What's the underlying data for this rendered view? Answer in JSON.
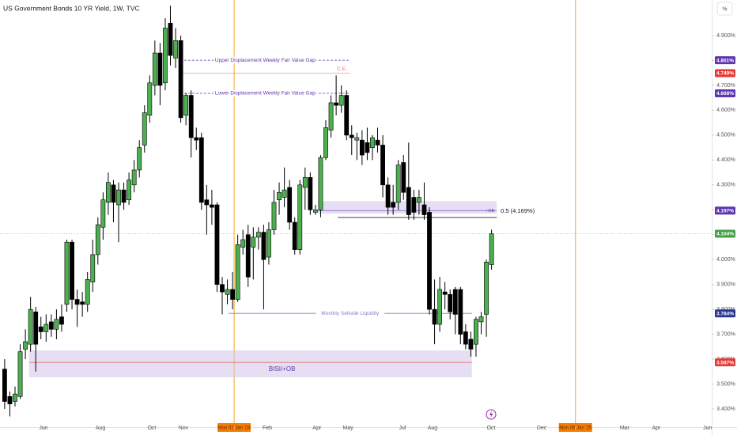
{
  "chart_data": {
    "type": "candlestick",
    "title": "US Government Bonds 10 YR Yield, 1W, TVC",
    "scale_button": "%",
    "up_color": "#4caf50",
    "down_color": "#000000",
    "open": [
      3.56,
      3.45,
      3.43,
      3.45,
      3.64,
      3.66,
      3.79,
      3.73,
      3.71,
      3.75,
      3.72,
      3.77,
      3.82,
      4.07,
      3.84,
      3.83,
      3.82,
      3.91,
      4.02,
      4.13,
      4.23,
      4.3,
      4.22,
      4.28,
      4.24,
      4.3,
      4.36,
      4.46,
      4.58,
      4.7,
      4.83,
      4.71,
      4.95,
      4.81,
      4.88,
      4.58,
      4.66,
      4.49,
      4.49,
      4.24,
      4.22,
      4.22,
      3.9,
      3.86,
      3.88,
      3.84,
      4.05,
      4.1,
      4.05,
      4.09,
      4.11,
      4.01,
      4.12,
      4.24,
      4.25,
      4.29,
      4.15,
      4.04,
      4.29,
      4.33,
      4.19,
      4.2,
      4.41,
      4.52,
      4.63,
      4.62,
      4.66,
      4.5,
      4.48,
      4.48,
      4.47,
      4.45,
      4.48,
      4.46,
      4.3,
      4.23,
      4.23,
      4.39,
      4.29,
      4.25,
      4.23,
      4.22,
      4.19,
      3.8,
      3.74,
      3.87,
      3.86,
      3.88,
      3.88,
      3.71,
      3.68,
      3.66,
      3.75,
      3.78,
      3.98
    ],
    "high": [
      3.6,
      3.47,
      3.49,
      3.66,
      3.72,
      3.85,
      3.81,
      3.77,
      3.78,
      3.78,
      3.8,
      3.82,
      4.08,
      4.08,
      3.88,
      3.87,
      3.95,
      4.08,
      4.17,
      4.27,
      4.35,
      4.32,
      4.31,
      4.31,
      4.35,
      4.4,
      4.48,
      4.62,
      4.74,
      4.88,
      4.87,
      4.97,
      5.02,
      4.93,
      4.9,
      4.67,
      4.68,
      4.53,
      4.51,
      4.3,
      4.28,
      4.23,
      3.93,
      3.92,
      3.95,
      4.1,
      4.12,
      4.14,
      4.13,
      4.13,
      4.14,
      4.15,
      4.28,
      4.31,
      4.37,
      4.32,
      4.17,
      4.32,
      4.37,
      4.35,
      4.22,
      4.42,
      4.56,
      4.66,
      4.74,
      4.7,
      4.68,
      4.54,
      4.51,
      4.52,
      4.53,
      4.5,
      4.53,
      4.5,
      4.33,
      4.3,
      4.4,
      4.42,
      4.47,
      4.28,
      4.28,
      4.31,
      4.21,
      3.92,
      3.93,
      3.91,
      3.88,
      3.89,
      3.89,
      3.74,
      3.71,
      3.77,
      3.79,
      4.0,
      4.12
    ],
    "low": [
      3.4,
      3.37,
      3.41,
      3.44,
      3.6,
      3.63,
      3.55,
      3.68,
      3.67,
      3.69,
      3.68,
      3.71,
      3.79,
      3.8,
      3.73,
      3.77,
      3.79,
      3.87,
      3.98,
      4.08,
      4.18,
      4.15,
      4.07,
      4.2,
      4.22,
      4.27,
      4.33,
      4.43,
      4.55,
      4.66,
      4.62,
      4.68,
      4.78,
      4.77,
      4.55,
      4.54,
      4.41,
      4.44,
      4.2,
      4.1,
      4.14,
      3.87,
      3.78,
      3.82,
      3.8,
      3.83,
      4.02,
      3.89,
      3.92,
      4.04,
      3.8,
      3.98,
      4.1,
      4.18,
      4.21,
      4.12,
      4.02,
      4.02,
      4.2,
      4.18,
      4.18,
      4.17,
      4.4,
      4.49,
      4.58,
      4.59,
      4.48,
      4.42,
      4.4,
      4.38,
      4.4,
      4.4,
      4.43,
      4.25,
      4.18,
      4.18,
      4.2,
      4.24,
      4.16,
      4.16,
      4.18,
      4.16,
      3.78,
      3.66,
      3.71,
      3.8,
      3.76,
      3.7,
      3.66,
      3.64,
      3.61,
      3.61,
      3.7,
      3.69,
      3.96
    ],
    "close": [
      3.43,
      3.42,
      3.46,
      3.63,
      3.67,
      3.8,
      3.66,
      3.71,
      3.74,
      3.72,
      3.76,
      3.74,
      4.07,
      3.84,
      3.82,
      3.82,
      3.92,
      4.02,
      4.14,
      4.24,
      4.31,
      4.23,
      4.28,
      4.23,
      4.32,
      4.36,
      4.45,
      4.59,
      4.71,
      4.83,
      4.7,
      4.93,
      4.82,
      4.88,
      4.57,
      4.66,
      4.49,
      4.48,
      4.23,
      4.22,
      4.21,
      3.9,
      3.87,
      3.88,
      3.84,
      4.06,
      4.08,
      3.93,
      4.09,
      4.11,
      4.0,
      4.12,
      4.23,
      4.27,
      4.28,
      4.15,
      4.04,
      4.3,
      4.33,
      4.2,
      4.2,
      4.41,
      4.53,
      4.63,
      4.62,
      4.66,
      4.5,
      4.49,
      4.49,
      4.42,
      4.43,
      4.49,
      4.46,
      4.3,
      4.21,
      4.21,
      4.38,
      4.27,
      4.18,
      4.19,
      4.25,
      4.18,
      3.8,
      3.74,
      3.88,
      3.86,
      3.79,
      3.78,
      3.7,
      3.66,
      3.64,
      3.76,
      3.77,
      3.99,
      4.104
    ],
    "xlim": [
      -0.9,
      136.5
    ],
    "ylim": [
      3.327,
      5.043
    ],
    "yticks": [
      {
        "value": 3.4,
        "label": "3.400%"
      },
      {
        "value": 3.5,
        "label": "3.500%"
      },
      {
        "value": 3.6,
        "label": "3.600%"
      },
      {
        "value": 3.7,
        "label": "3.700%"
      },
      {
        "value": 3.8,
        "label": "3.800%"
      },
      {
        "value": 3.9,
        "label": "3.900%"
      },
      {
        "value": 4.0,
        "label": "4.000%"
      },
      {
        "value": 4.1,
        "label": "4.100%"
      },
      {
        "value": 4.2,
        "label": "4.200%"
      },
      {
        "value": 4.3,
        "label": "4.300%"
      },
      {
        "value": 4.4,
        "label": "4.400%"
      },
      {
        "value": 4.5,
        "label": "4.500%"
      },
      {
        "value": 4.6,
        "label": "4.600%"
      },
      {
        "value": 4.7,
        "label": "4.700%"
      },
      {
        "value": 4.8,
        "label": "4.800%"
      },
      {
        "value": 4.9,
        "label": "4.900%"
      }
    ],
    "xticks": [
      {
        "value": 7.5,
        "label": "Jun"
      },
      {
        "value": 18.5,
        "label": "Aug"
      },
      {
        "value": 28.4,
        "label": "Oct"
      },
      {
        "value": 34.5,
        "label": "Nov"
      },
      {
        "value": 44.3,
        "label": "Mon 01 Jan '24"
      },
      {
        "value": 50.7,
        "label": "Feb"
      },
      {
        "value": 60.3,
        "label": "Apr"
      },
      {
        "value": 66.3,
        "label": "May"
      },
      {
        "value": 76.8,
        "label": "Jul"
      },
      {
        "value": 82.6,
        "label": "Aug"
      },
      {
        "value": 93.9,
        "label": "Oct"
      },
      {
        "value": 103.7,
        "label": "Dec"
      },
      {
        "value": 110.2,
        "label": "Mon 06 Jan '25"
      },
      {
        "value": 119.7,
        "label": "Mar"
      },
      {
        "value": 125.8,
        "label": "Apr"
      },
      {
        "value": 135.7,
        "label": "Jun"
      }
    ],
    "vlines": [
      44.3,
      110.2
    ],
    "vline_color": "#f5a623",
    "last_price_line": 4.104,
    "price_labels": [
      {
        "value": 4.801,
        "label": "4.801%",
        "color": "#5e35b1"
      },
      {
        "value": 4.749,
        "label": "4.749%",
        "color": "#e53935"
      },
      {
        "value": 4.668,
        "label": "4.668%",
        "color": "#5e35b1"
      },
      {
        "value": 4.197,
        "label": "4.197%",
        "color": "#5e35b1"
      },
      {
        "value": 4.104,
        "label": "4.104%",
        "color": "#43a047"
      },
      {
        "value": 3.784,
        "label": "3.784%",
        "color": "#283593"
      },
      {
        "value": 3.587,
        "label": "3.587%",
        "color": "#e53935"
      }
    ],
    "lines": [
      {
        "text": "Upper Displacement Weekly Fair Value Gap",
        "value": 4.801,
        "x_range": [
          33.9,
          66.7
        ],
        "color": "#5e35b1",
        "dash": true
      },
      {
        "text": "C.E.",
        "value": 4.749,
        "x_range": [
          33.9,
          66.7
        ],
        "color": "#ef9a9a",
        "dash": false
      },
      {
        "text": "Lower Displacement Weekly Fair Value Gap",
        "value": 4.668,
        "x_range": [
          33.9,
          66.7
        ],
        "color": "#5e35b1",
        "dash": true
      },
      {
        "text": "Monthly Sellside Liquidity",
        "value": 3.784,
        "x_range": [
          43.2,
          90.2
        ],
        "color": "#9575cd",
        "dash": false
      },
      {
        "text": "0.5 (4.169%)",
        "value": 4.169,
        "x_range": [
          64.3,
          95.0
        ],
        "color": "#000000",
        "dash": false
      }
    ],
    "boxes": [
      {
        "text": "+OB",
        "y_range": [
          4.185,
          4.235
        ],
        "x_range": [
          60.5,
          95.0
        ],
        "line": 4.197,
        "color": "#d1c4e9"
      },
      {
        "text": "BISI/+OB",
        "y_range": [
          3.527,
          3.635
        ],
        "x_range": [
          4.7,
          90.2
        ],
        "line": 3.587,
        "color": "#d1c4e9"
      }
    ]
  }
}
